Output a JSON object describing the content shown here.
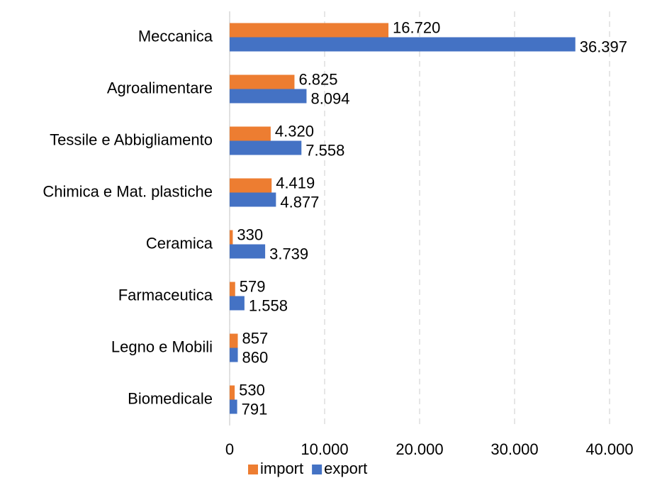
{
  "chart_data": {
    "type": "bar",
    "orientation": "horizontal",
    "categories": [
      "Meccanica",
      "Agroalimentare",
      "Tessile e Abbigliamento",
      "Chimica e Mat. plastiche",
      "Ceramica",
      "Farmaceutica",
      "Legno e Mobili",
      "Biomedicale"
    ],
    "series": [
      {
        "name": "import",
        "color": "#ed7d31",
        "values": [
          16720,
          6825,
          4320,
          4419,
          330,
          579,
          857,
          530
        ],
        "value_labels": [
          "16.720",
          "6.825",
          "4.320",
          "4.419",
          "330",
          "579",
          "857",
          "530"
        ]
      },
      {
        "name": "export",
        "color": "#4472c4",
        "values": [
          36397,
          8094,
          7558,
          4877,
          3739,
          1558,
          860,
          791
        ],
        "value_labels": [
          "36.397",
          "8.094",
          "7.558",
          "4.877",
          "3.739",
          "1.558",
          "860",
          "791"
        ]
      }
    ],
    "xlim": [
      0,
      40000
    ],
    "xticks": [
      0,
      {
        "value": 10000,
        "label": "10.000"
      },
      {
        "value": 20000,
        "label": "20.000"
      },
      {
        "value": 30000,
        "label": "30.000"
      },
      {
        "value": 40000,
        "label": "40.000"
      }
    ],
    "grid": true,
    "legend": "bottom"
  }
}
